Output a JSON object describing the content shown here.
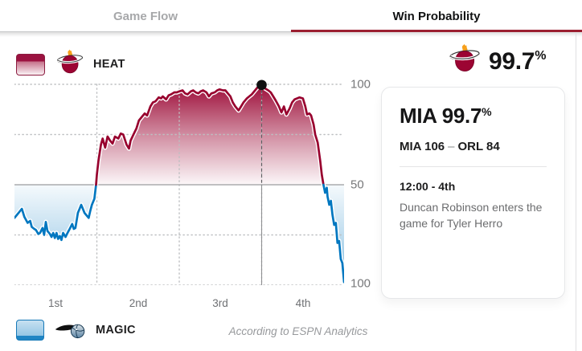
{
  "tabs": {
    "game_flow": "Game Flow",
    "win_probability": "Win Probability"
  },
  "teams": {
    "heat": {
      "label": "HEAT",
      "abbr": "MIA",
      "color": "#98002e"
    },
    "magic": {
      "label": "MAGIC",
      "abbr": "ORL",
      "color": "#0077c0"
    }
  },
  "summary": {
    "win_pct_value": "99.7",
    "win_pct_unit": "%"
  },
  "card": {
    "title_value": "MIA 99.7",
    "title_unit": "%",
    "score_left": "MIA 106",
    "score_sep": "–",
    "score_right": "ORL 84",
    "clock": "12:00 - 4th",
    "event": "Duncan Robinson enters the game for Tyler Herro"
  },
  "footnote": "According to ESPN Analytics",
  "ui_colors": {
    "active_tab_underline": "#9b1f30"
  },
  "chart_data": {
    "type": "area",
    "description": "Win probability over game time; values above the 50 line favor Miami (HEAT), values below favor Orlando (MAGIC)",
    "x_unit": "quarter",
    "x_range": [
      0,
      4
    ],
    "x_ticks": [
      "1st",
      "2nd",
      "3rd",
      "4th"
    ],
    "y_tick_labels": [
      "100",
      "50",
      "100"
    ],
    "ylim": [
      0,
      100
    ],
    "midline": 50,
    "grid": "dotted lines at 75/25 probability and quarter boundaries, solid line at 50",
    "legend_position": "HEAT top-left, MAGIC bottom-left",
    "heat_color": "#98002e",
    "magic_color": "#0077c0",
    "marker": {
      "x": 3.0,
      "y": 99.7,
      "label": "12:00 - 4th — Duncan Robinson enters the game for Tyler Herro"
    },
    "series": [
      {
        "name": "HEAT win probability %",
        "points": [
          [
            0,
            33.5
          ],
          [
            0.03,
            35
          ],
          [
            0.06,
            36.5
          ],
          [
            0.09,
            38
          ],
          [
            0.12,
            34
          ],
          [
            0.16,
            31
          ],
          [
            0.19,
            32
          ],
          [
            0.21,
            29
          ],
          [
            0.24,
            28
          ],
          [
            0.26,
            27.5
          ],
          [
            0.29,
            25.5
          ],
          [
            0.31,
            26
          ],
          [
            0.34,
            28.5
          ],
          [
            0.36,
            25
          ],
          [
            0.38,
            31.5
          ],
          [
            0.4,
            27
          ],
          [
            0.43,
            25.5
          ],
          [
            0.45,
            24
          ],
          [
            0.47,
            26
          ],
          [
            0.49,
            23.5
          ],
          [
            0.51,
            26
          ],
          [
            0.53,
            23
          ],
          [
            0.55,
            24.5
          ],
          [
            0.57,
            22.5
          ],
          [
            0.59,
            26
          ],
          [
            0.62,
            24
          ],
          [
            0.65,
            26.5
          ],
          [
            0.67,
            28
          ],
          [
            0.7,
            30.5
          ],
          [
            0.72,
            28
          ],
          [
            0.74,
            28.5
          ],
          [
            0.77,
            36
          ],
          [
            0.79,
            38
          ],
          [
            0.81,
            40
          ],
          [
            0.83,
            38
          ],
          [
            0.85,
            36
          ],
          [
            0.88,
            34.5
          ],
          [
            0.9,
            33.5
          ],
          [
            0.92,
            37
          ],
          [
            0.94,
            40
          ],
          [
            0.97,
            43
          ],
          [
            0.99,
            50
          ],
          [
            1.0,
            55
          ],
          [
            1.02,
            62
          ],
          [
            1.05,
            70
          ],
          [
            1.07,
            73
          ],
          [
            1.1,
            68.5
          ],
          [
            1.13,
            74
          ],
          [
            1.16,
            72
          ],
          [
            1.19,
            70.5
          ],
          [
            1.22,
            74
          ],
          [
            1.26,
            73
          ],
          [
            1.29,
            75.5
          ],
          [
            1.32,
            75
          ],
          [
            1.36,
            70
          ],
          [
            1.39,
            68
          ],
          [
            1.41,
            72
          ],
          [
            1.45,
            75.5
          ],
          [
            1.48,
            78
          ],
          [
            1.51,
            82
          ],
          [
            1.55,
            84
          ],
          [
            1.58,
            85.5
          ],
          [
            1.61,
            84.5
          ],
          [
            1.65,
            89
          ],
          [
            1.68,
            91
          ],
          [
            1.71,
            91.5
          ],
          [
            1.75,
            93.5
          ],
          [
            1.78,
            93
          ],
          [
            1.8,
            94
          ],
          [
            1.84,
            92.5
          ],
          [
            1.87,
            94.5
          ],
          [
            1.9,
            95
          ],
          [
            1.94,
            96
          ],
          [
            1.97,
            96
          ],
          [
            2.0,
            96.5
          ],
          [
            2.04,
            97
          ],
          [
            2.07,
            95.5
          ],
          [
            2.1,
            95
          ],
          [
            2.14,
            96.5
          ],
          [
            2.17,
            97
          ],
          [
            2.2,
            96
          ],
          [
            2.23,
            95.5
          ],
          [
            2.26,
            96.5
          ],
          [
            2.29,
            97
          ],
          [
            2.33,
            96
          ],
          [
            2.36,
            94
          ],
          [
            2.39,
            95.5
          ],
          [
            2.43,
            96
          ],
          [
            2.46,
            97
          ],
          [
            2.49,
            97.5
          ],
          [
            2.53,
            97
          ],
          [
            2.56,
            97
          ],
          [
            2.59,
            95.5
          ],
          [
            2.62,
            94
          ],
          [
            2.65,
            91
          ],
          [
            2.68,
            89
          ],
          [
            2.72,
            87
          ],
          [
            2.75,
            89
          ],
          [
            2.78,
            91
          ],
          [
            2.82,
            93
          ],
          [
            2.85,
            94
          ],
          [
            2.88,
            95
          ],
          [
            2.92,
            97
          ],
          [
            2.95,
            98.5
          ],
          [
            3.0,
            99.7
          ],
          [
            3.01,
            99
          ],
          [
            3.04,
            98
          ],
          [
            3.08,
            97
          ],
          [
            3.11,
            96
          ],
          [
            3.14,
            94
          ],
          [
            3.17,
            92
          ],
          [
            3.21,
            89
          ],
          [
            3.24,
            86
          ],
          [
            3.27,
            89
          ],
          [
            3.3,
            85
          ],
          [
            3.34,
            88
          ],
          [
            3.37,
            91
          ],
          [
            3.4,
            92.5
          ],
          [
            3.43,
            93
          ],
          [
            3.46,
            93.5
          ],
          [
            3.5,
            93
          ],
          [
            3.53,
            89
          ],
          [
            3.55,
            85
          ],
          [
            3.58,
            85.5
          ],
          [
            3.6,
            84.5
          ],
          [
            3.63,
            80
          ],
          [
            3.65,
            75
          ],
          [
            3.68,
            71
          ],
          [
            3.71,
            62
          ],
          [
            3.73,
            55
          ],
          [
            3.75,
            50
          ],
          [
            3.77,
            46
          ],
          [
            3.79,
            48.5
          ],
          [
            3.8,
            44
          ],
          [
            3.82,
            40
          ],
          [
            3.84,
            42
          ],
          [
            3.86,
            35
          ],
          [
            3.88,
            30
          ],
          [
            3.9,
            31
          ],
          [
            3.92,
            21
          ],
          [
            3.94,
            22
          ],
          [
            3.96,
            13
          ],
          [
            3.98,
            11
          ],
          [
            3.99,
            6
          ],
          [
            4.0,
            1.5
          ]
        ]
      }
    ]
  }
}
